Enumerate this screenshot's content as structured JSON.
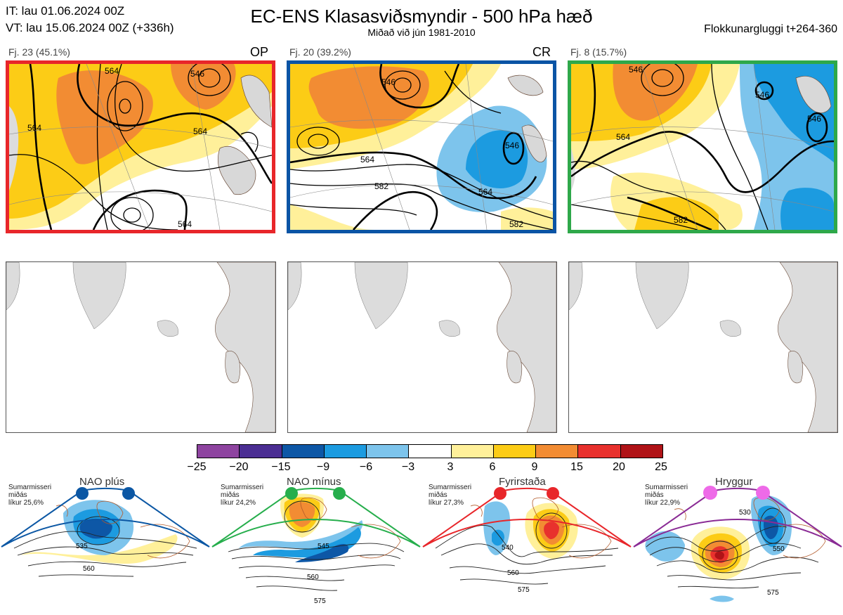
{
  "header": {
    "init_time": "IT: lau 01.06.2024 00Z",
    "valid_time": "VT: lau 15.06.2024 00Z  (+336h)",
    "title": "EC-ENS Klasasviðsmyndir - 500 hPa hæð",
    "subtitle": "Miðað við jún 1981-2010",
    "window": "Flokkunargluggi t+264-360"
  },
  "clusters": [
    {
      "label": "Fj. 23 (45.1%)",
      "code": "OP",
      "frame_color": "#e8262a",
      "contours": [
        "564",
        "546",
        "564",
        "564",
        "564"
      ]
    },
    {
      "label": "Fj. 20 (39.2%)",
      "code": "CR",
      "frame_color": "#0a54a5",
      "contours": [
        "546",
        "564",
        "582",
        "546",
        "564",
        "582"
      ]
    },
    {
      "label": "Fj. 8 (15.7%)",
      "code": "",
      "frame_color": "#2ea84a",
      "contours": [
        "546",
        "564",
        "546",
        "546",
        "582"
      ]
    }
  ],
  "colorbar": {
    "colors": [
      "#8e44a0",
      "#4b2e93",
      "#0d57a6",
      "#1c9be0",
      "#7dc4ec",
      "#ffffff",
      "#fff09a",
      "#fccc16",
      "#f28c33",
      "#e8312d",
      "#b01317"
    ],
    "ticks": [
      "−25",
      "−20",
      "−15",
      "−9",
      "−6",
      "−3",
      "3",
      "6",
      "9",
      "15",
      "20",
      "25"
    ]
  },
  "patterns": [
    {
      "name": "NAO plús",
      "season": "Sumarmisseri",
      "mean": "miðás",
      "prob": "líkur 25,6%",
      "dot_color": "#0b57a4",
      "frame_color": "#0b57a4",
      "contours": [
        "535",
        "560"
      ]
    },
    {
      "name": "NAO mínus",
      "season": "Sumarmisseri",
      "mean": "miðás",
      "prob": "líkur 24,2%",
      "dot_color": "#26ae4c",
      "frame_color": "#26ae4c",
      "contours": [
        "545",
        "560",
        "575"
      ]
    },
    {
      "name": "Fyrirstaða",
      "season": "Sumarmisseri",
      "mean": "miðás",
      "prob": "líkur 27,3%",
      "dot_color": "#e8262a",
      "frame_color": "#e8262a",
      "contours": [
        "540",
        "560",
        "575"
      ]
    },
    {
      "name": "Hryggur",
      "season": "Sumarmisseri",
      "mean": "miðás",
      "prob": "líkur 22,9%",
      "dot_color": "#ee6ae8",
      "frame_color": "#8a2b95",
      "contours": [
        "530",
        "550",
        "575"
      ]
    }
  ]
}
